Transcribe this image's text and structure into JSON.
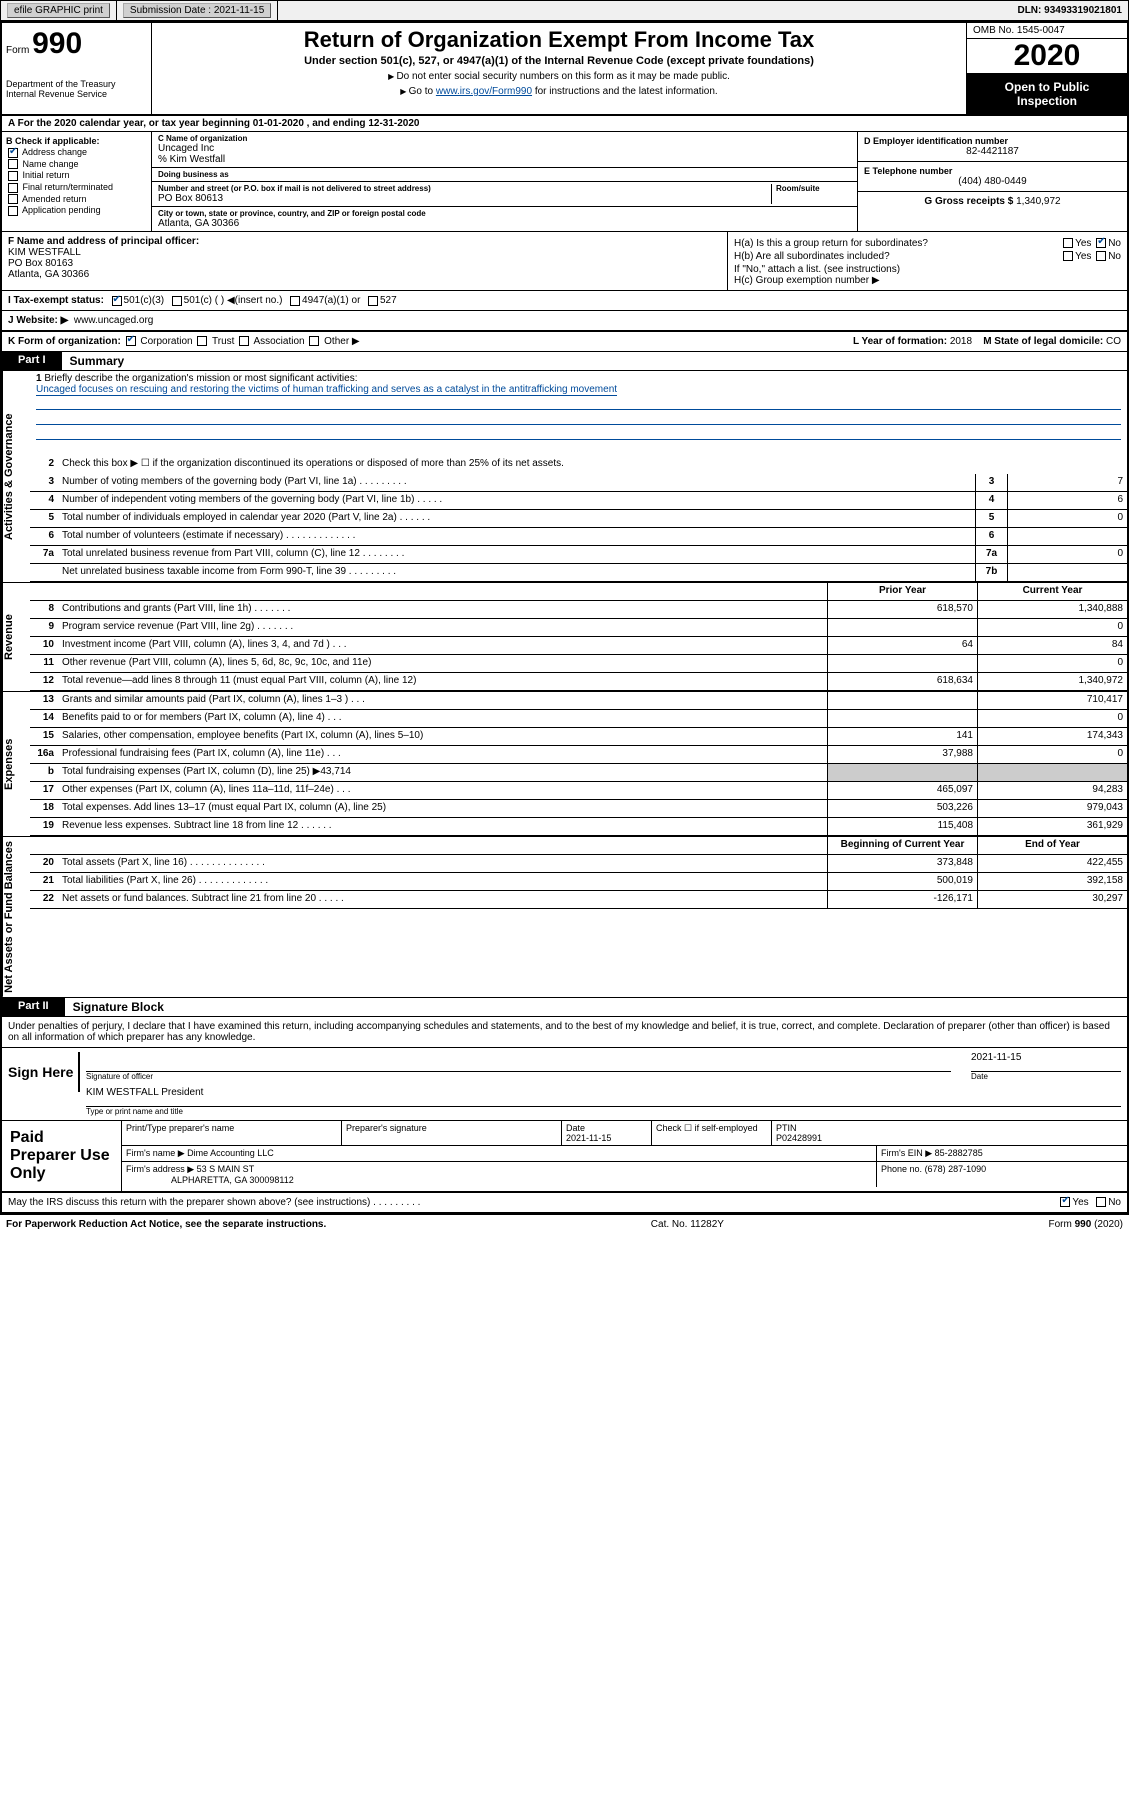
{
  "colors": {
    "link": "#004b9b",
    "grey": "#cccccc",
    "black": "#000000",
    "white": "#ffffff"
  },
  "topbar": {
    "efile": "efile GRAPHIC print",
    "submission_label": "Submission Date : 2021-11-15",
    "dln": "DLN: 93493319021801"
  },
  "header": {
    "form_prefix": "Form",
    "form_number": "990",
    "dept1": "Department of the Treasury",
    "dept2": "Internal Revenue Service",
    "title": "Return of Organization Exempt From Income Tax",
    "subtitle": "Under section 501(c), 527, or 4947(a)(1) of the Internal Revenue Code (except private foundations)",
    "instr1": "Do not enter social security numbers on this form as it may be made public.",
    "instr2_pre": "Go to ",
    "instr2_link": "www.irs.gov/Form990",
    "instr2_post": " for instructions and the latest information.",
    "omb": "OMB No. 1545-0047",
    "year": "2020",
    "public1": "Open to Public",
    "public2": "Inspection"
  },
  "row_a": "A For the 2020 calendar year, or tax year beginning 01-01-2020   , and ending 12-31-2020",
  "section_b": {
    "label": "B Check if applicable:",
    "items": [
      "Address change",
      "Name change",
      "Initial return",
      "Final return/terminated",
      "Amended return",
      "Application pending"
    ],
    "checked": [
      true,
      false,
      false,
      false,
      false,
      false
    ]
  },
  "section_c": {
    "name_label": "C Name of organization",
    "name": "Uncaged Inc",
    "care_of": "% Kim Westfall",
    "dba_label": "Doing business as",
    "dba": "",
    "street_label": "Number and street (or P.O. box if mail is not delivered to street address)",
    "room_label": "Room/suite",
    "street": "PO Box 80613",
    "city_label": "City or town, state or province, country, and ZIP or foreign postal code",
    "city": "Atlanta, GA  30366"
  },
  "section_d": {
    "ein_label": "D Employer identification number",
    "ein": "82-4421187",
    "phone_label": "E Telephone number",
    "phone": "(404) 480-0449",
    "gross_label": "G Gross receipts $",
    "gross": "1,340,972"
  },
  "section_f": {
    "label": "F Name and address of principal officer:",
    "name": "KIM WESTFALL",
    "addr1": "PO Box 80163",
    "addr2": "Atlanta, GA  30366"
  },
  "section_h": {
    "ha_q": "H(a) Is this a group return for subordinates?",
    "ha_yes": "Yes",
    "ha_no": "No",
    "hb_q": "H(b) Are all subordinates included?",
    "hb_note": "If \"No,\" attach a list. (see instructions)",
    "hc": "H(c) Group exemption number ▶"
  },
  "row_i": {
    "label": "I Tax-exempt status:",
    "opts": [
      "501(c)(3)",
      "501(c) (  ) ◀(insert no.)",
      "4947(a)(1) or",
      "527"
    ],
    "checked": [
      true,
      false,
      false,
      false
    ]
  },
  "row_j": {
    "label": "J Website: ▶",
    "value": "www.uncaged.org"
  },
  "row_k": {
    "left_label": "K Form of organization:",
    "opts": [
      "Corporation",
      "Trust",
      "Association",
      "Other ▶"
    ],
    "checked": [
      true,
      false,
      false,
      false
    ],
    "l_label": "L Year of formation:",
    "l_val": "2018",
    "m_label": "M State of legal domicile:",
    "m_val": "CO"
  },
  "parts": {
    "p1": "Part I",
    "p1_title": "Summary",
    "p2": "Part II",
    "p2_title": "Signature Block"
  },
  "vstrips": {
    "ag": "Activities & Governance",
    "rev": "Revenue",
    "exp": "Expenses",
    "na": "Net Assets or Fund Balances"
  },
  "q1": {
    "num": "1",
    "label": "Briefly describe the organization's mission or most significant activities:",
    "text": "Uncaged focuses on rescuing and restoring the victims of human trafficking and serves as a catalyst in the antitrafficking movement"
  },
  "q2": {
    "num": "2",
    "label": "Check this box ▶ ☐ if the organization discontinued its operations or disposed of more than 25% of its net assets."
  },
  "lines_ag": [
    {
      "num": "3",
      "desc": "Number of voting members of the governing body (Part VI, line 1a)   .   .   .   .   .   .   .   .   .",
      "box": "3",
      "val": "7"
    },
    {
      "num": "4",
      "desc": "Number of independent voting members of the governing body (Part VI, line 1b)   .   .   .   .   .",
      "box": "4",
      "val": "6"
    },
    {
      "num": "5",
      "desc": "Total number of individuals employed in calendar year 2020 (Part V, line 2a)   .   .   .   .   .   .",
      "box": "5",
      "val": "0"
    },
    {
      "num": "6",
      "desc": "Total number of volunteers (estimate if necessary)   .   .   .   .   .   .   .   .   .   .   .   .   .",
      "box": "6",
      "val": ""
    },
    {
      "num": "7a",
      "desc": "Total unrelated business revenue from Part VIII, column (C), line 12   .   .   .   .   .   .   .   .",
      "box": "7a",
      "val": "0"
    },
    {
      "num": "",
      "desc": "Net unrelated business taxable income from Form 990-T, line 39   .   .   .   .   .   .   .   .   .",
      "box": "7b",
      "val": ""
    }
  ],
  "col_headers": {
    "py": "Prior Year",
    "cy": "Current Year",
    "boy": "Beginning of Current Year",
    "eoy": "End of Year"
  },
  "lines_rev": [
    {
      "num": "8",
      "desc": "Contributions and grants (Part VIII, line 1h)   .   .   .   .   .   .   .",
      "py": "618,570",
      "cy": "1,340,888"
    },
    {
      "num": "9",
      "desc": "Program service revenue (Part VIII, line 2g)   .   .   .   .   .   .   .",
      "py": "",
      "cy": "0"
    },
    {
      "num": "10",
      "desc": "Investment income (Part VIII, column (A), lines 3, 4, and 7d )   .   .   .",
      "py": "64",
      "cy": "84"
    },
    {
      "num": "11",
      "desc": "Other revenue (Part VIII, column (A), lines 5, 6d, 8c, 9c, 10c, and 11e)",
      "py": "",
      "cy": "0"
    },
    {
      "num": "12",
      "desc": "Total revenue—add lines 8 through 11 (must equal Part VIII, column (A), line 12)",
      "py": "618,634",
      "cy": "1,340,972"
    }
  ],
  "lines_exp": [
    {
      "num": "13",
      "desc": "Grants and similar amounts paid (Part IX, column (A), lines 1–3 )   .   .   .",
      "py": "",
      "cy": "710,417"
    },
    {
      "num": "14",
      "desc": "Benefits paid to or for members (Part IX, column (A), line 4)   .   .   .",
      "py": "",
      "cy": "0"
    },
    {
      "num": "15",
      "desc": "Salaries, other compensation, employee benefits (Part IX, column (A), lines 5–10)",
      "py": "141",
      "cy": "174,343"
    },
    {
      "num": "16a",
      "desc": "Professional fundraising fees (Part IX, column (A), line 11e)   .   .   .",
      "py": "37,988",
      "cy": "0"
    },
    {
      "num": "b",
      "desc": "Total fundraising expenses (Part IX, column (D), line 25) ▶43,714",
      "py": "GREY",
      "cy": "GREY"
    },
    {
      "num": "17",
      "desc": "Other expenses (Part IX, column (A), lines 11a–11d, 11f–24e)   .   .   .",
      "py": "465,097",
      "cy": "94,283"
    },
    {
      "num": "18",
      "desc": "Total expenses. Add lines 13–17 (must equal Part IX, column (A), line 25)",
      "py": "503,226",
      "cy": "979,043"
    },
    {
      "num": "19",
      "desc": "Revenue less expenses. Subtract line 18 from line 12   .   .   .   .   .   .",
      "py": "115,408",
      "cy": "361,929"
    }
  ],
  "lines_na": [
    {
      "num": "20",
      "desc": "Total assets (Part X, line 16)   .   .   .   .   .   .   .   .   .   .   .   .   .   .",
      "py": "373,848",
      "cy": "422,455"
    },
    {
      "num": "21",
      "desc": "Total liabilities (Part X, line 26)   .   .   .   .   .   .   .   .   .   .   .   .   .",
      "py": "500,019",
      "cy": "392,158"
    },
    {
      "num": "22",
      "desc": "Net assets or fund balances. Subtract line 21 from line 20   .   .   .   .   .",
      "py": "-126,171",
      "cy": "30,297"
    }
  ],
  "sig": {
    "perjury": "Under penalties of perjury, I declare that I have examined this return, including accompanying schedules and statements, and to the best of my knowledge and belief, it is true, correct, and complete. Declaration of preparer (other than officer) is based on all information of which preparer has any knowledge.",
    "sign_here": "Sign Here",
    "officer_cap": "Signature of officer",
    "date": "2021-11-15",
    "date_cap": "Date",
    "officer_name": "KIM WESTFALL  President",
    "name_cap": "Type or print name and title"
  },
  "prep": {
    "title": "Paid Preparer Use Only",
    "h_name": "Print/Type preparer's name",
    "h_sig": "Preparer's signature",
    "h_date": "Date",
    "date": "2021-11-15",
    "h_check": "Check ☐ if self-employed",
    "h_ptin": "PTIN",
    "ptin": "P02428991",
    "firm_label": "Firm's name  ▶",
    "firm": "Dime Accounting LLC",
    "firm_ein_label": "Firm's EIN ▶",
    "firm_ein": "85-2882785",
    "addr_label": "Firm's address ▶",
    "addr1": "53 S MAIN ST",
    "addr2": "ALPHARETTA, GA  300098112",
    "phone_label": "Phone no.",
    "phone": "(678) 287-1090"
  },
  "discuss": {
    "q": "May the IRS discuss this return with the preparer shown above? (see instructions)   .   .   .   .   .   .   .   .   .",
    "yes": "Yes",
    "no": "No"
  },
  "footer": {
    "left": "For Paperwork Reduction Act Notice, see the separate instructions.",
    "mid": "Cat. No. 11282Y",
    "right": "Form 990 (2020)"
  }
}
